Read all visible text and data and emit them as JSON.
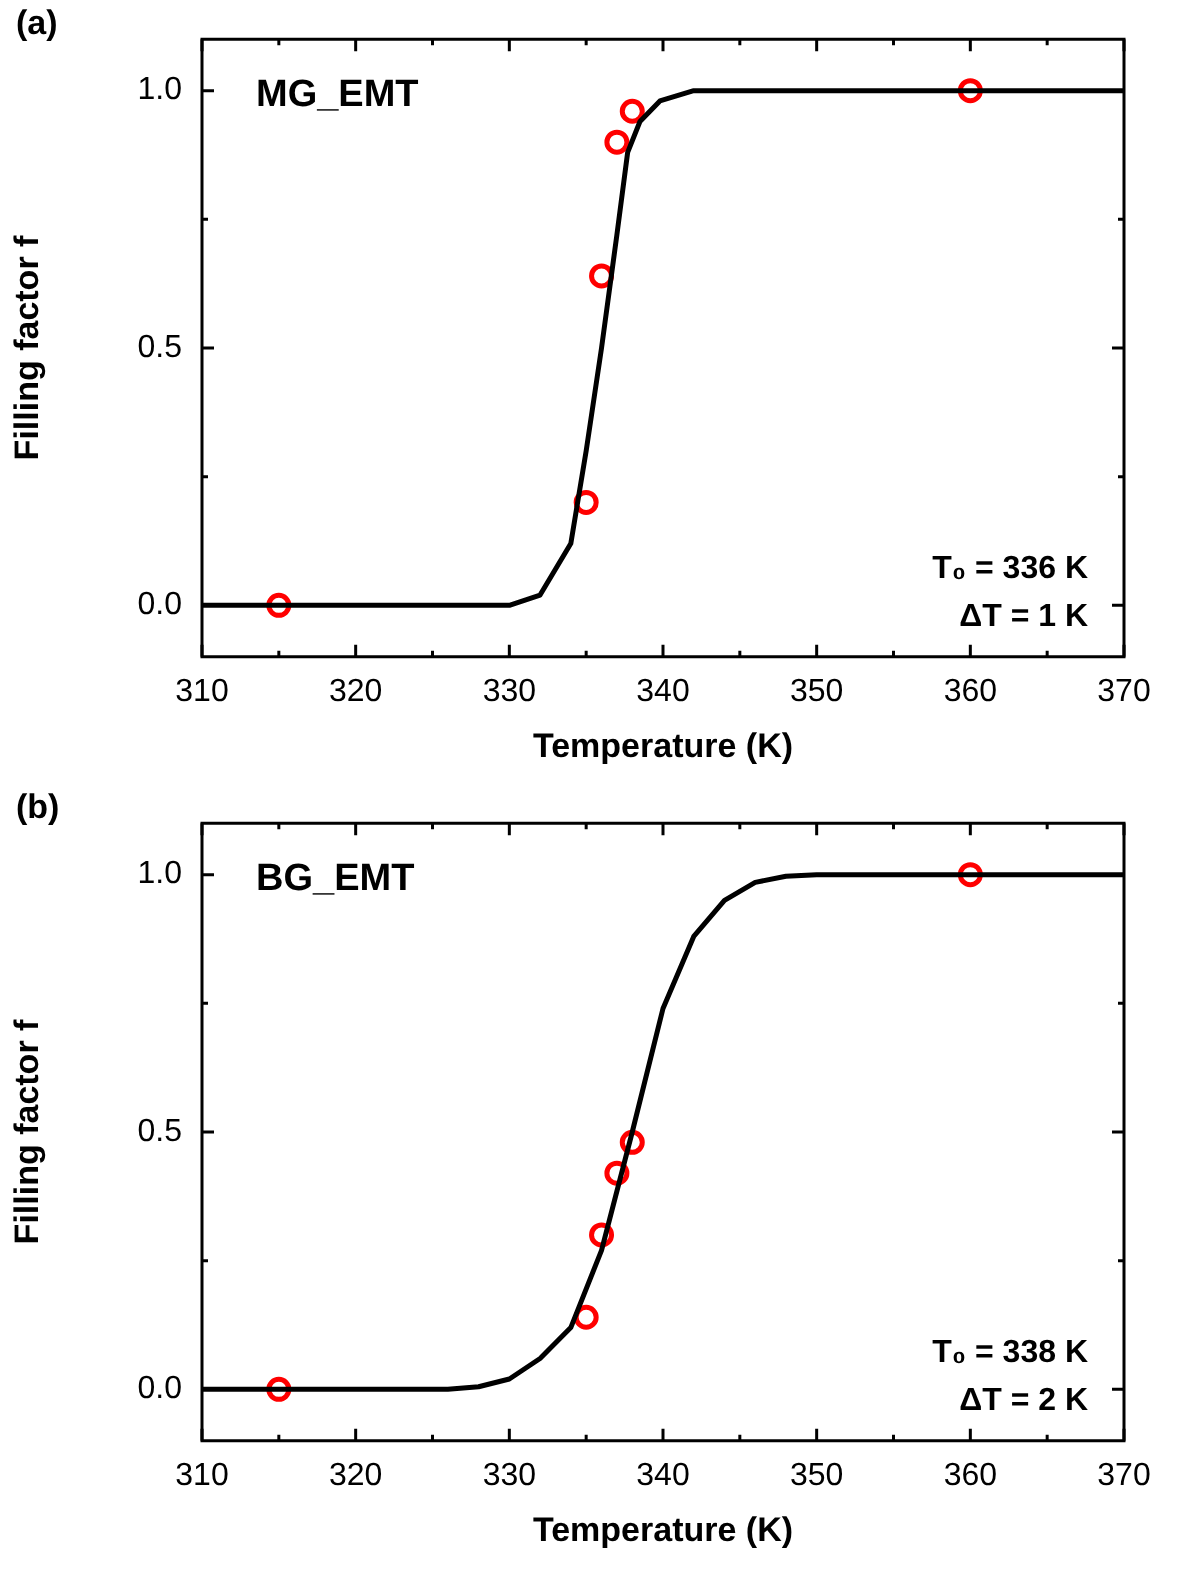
{
  "chart_data": [
    {
      "type": "line",
      "title": "(a)",
      "xlabel": "Temperature (K)",
      "ylabel": "Filling factor f",
      "annotations": [
        "MG_EMT",
        "T₀ = 336 K",
        "ΔT = 1 K"
      ],
      "xlim": [
        310,
        370
      ],
      "ylim": [
        -0.1,
        1.1
      ],
      "xticks": [
        310,
        {
          "value": 315,
          "label": null
        },
        320,
        {
          "value": 325,
          "label": null
        },
        330,
        {
          "value": 335,
          "label": null
        },
        340,
        {
          "value": 345,
          "label": null
        },
        350,
        {
          "value": 355,
          "label": null
        },
        360,
        {
          "value": 365,
          "label": null
        },
        370
      ],
      "yticks": [
        {
          "value": 0,
          "label": "0.0"
        },
        {
          "value": 0.25,
          "label": null
        },
        {
          "value": 0.5,
          "label": "0.5"
        },
        {
          "value": 0.75,
          "label": null
        },
        {
          "value": 1,
          "label": "1.0"
        }
      ],
      "grid": false,
      "legend": false,
      "series": [
        {
          "type": "line",
          "color": "#000000",
          "marker": "none",
          "x": [
            310,
            330,
            332,
            334,
            335,
            336,
            337,
            337.7,
            338.5,
            339.8,
            342,
            370
          ],
          "values": [
            0,
            0,
            0.02,
            0.12,
            0.3,
            0.5,
            0.72,
            0.88,
            0.94,
            0.98,
            1,
            1
          ]
        },
        {
          "type": "scatter",
          "color": "#ff0000",
          "marker": "circle",
          "x": [
            315,
            335,
            336,
            337,
            338,
            360
          ],
          "values": [
            0,
            0.2,
            0.64,
            0.9,
            0.96,
            1
          ]
        }
      ]
    },
    {
      "type": "line",
      "title": "(b)",
      "xlabel": "Temperature (K)",
      "ylabel": "Filling factor f",
      "annotations": [
        "BG_EMT",
        "T₀ = 338 K",
        "ΔT = 2 K"
      ],
      "xlim": [
        310,
        370
      ],
      "ylim": [
        -0.1,
        1.1
      ],
      "xticks": [
        310,
        {
          "value": 315,
          "label": null
        },
        320,
        {
          "value": 325,
          "label": null
        },
        330,
        {
          "value": 335,
          "label": null
        },
        340,
        {
          "value": 345,
          "label": null
        },
        350,
        {
          "value": 355,
          "label": null
        },
        360,
        {
          "value": 365,
          "label": null
        },
        370
      ],
      "yticks": [
        {
          "value": 0,
          "label": "0.0"
        },
        {
          "value": 0.25,
          "label": null
        },
        {
          "value": 0.5,
          "label": "0.5"
        },
        {
          "value": 0.75,
          "label": null
        },
        {
          "value": 1,
          "label": "1.0"
        }
      ],
      "grid": false,
      "legend": false,
      "series": [
        {
          "type": "line",
          "color": "#000000",
          "marker": "none",
          "x": [
            310,
            326,
            328,
            330,
            332,
            334,
            336,
            338,
            340,
            342,
            344,
            346,
            348,
            350,
            370
          ],
          "values": [
            0,
            0,
            0.005,
            0.02,
            0.06,
            0.12,
            0.27,
            0.5,
            0.74,
            0.88,
            0.95,
            0.985,
            0.997,
            1,
            1
          ]
        },
        {
          "type": "scatter",
          "color": "#ff0000",
          "marker": "circle",
          "x": [
            315,
            335,
            336,
            337,
            338,
            360
          ],
          "values": [
            0,
            0.14,
            0.3,
            0.42,
            0.48,
            1
          ]
        }
      ]
    }
  ]
}
